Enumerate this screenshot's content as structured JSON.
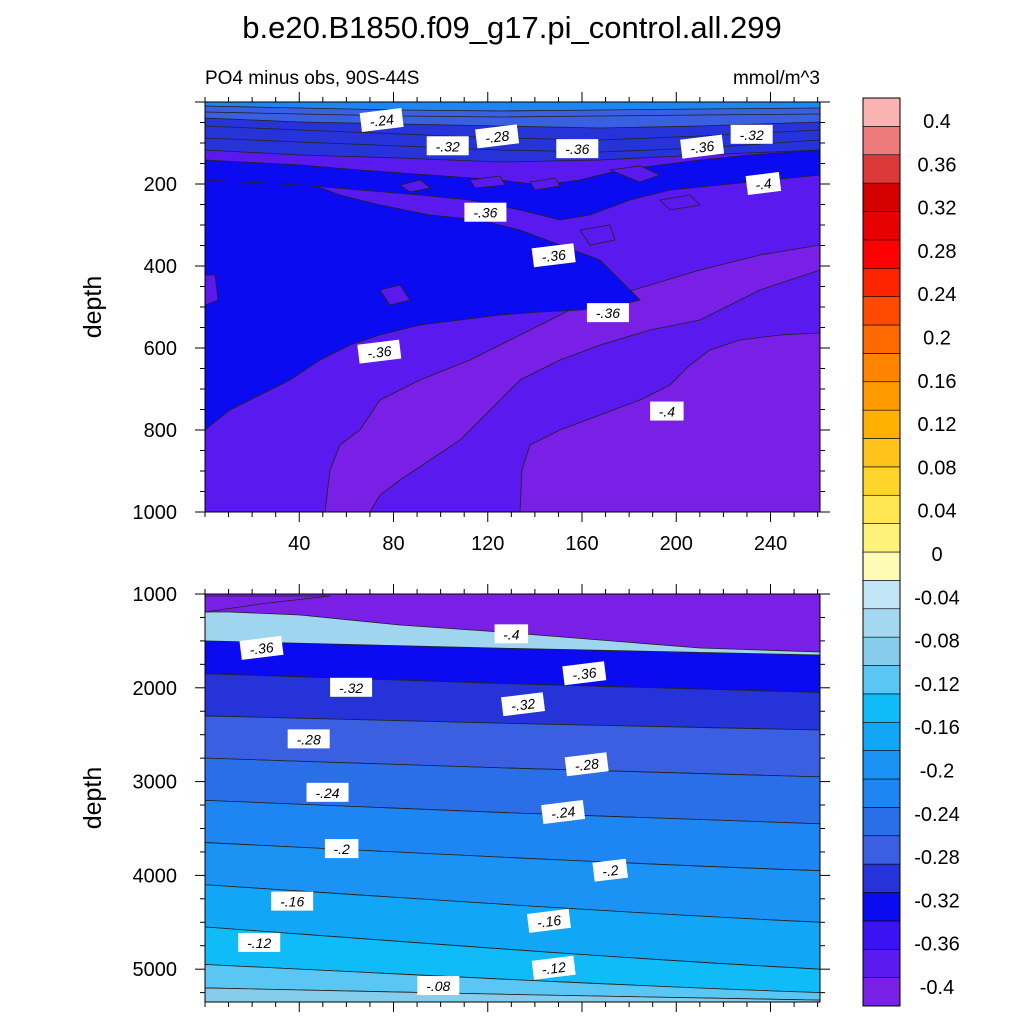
{
  "title": "b.e20.B1850.f09_g17.pi_control.all.299",
  "subtitle_left": "PO4 minus obs, 90S-44S",
  "subtitle_right": "mmol/m^3",
  "colorbar": {
    "levels": [
      "-0.4",
      "-0.36",
      "-0.32",
      "-0.28",
      "-0.24",
      "-0.2",
      "-0.16",
      "-0.12",
      "-0.08",
      "-0.04",
      "0",
      "0.04",
      "0.08",
      "0.12",
      "0.16",
      "0.2",
      "0.24",
      "0.28",
      "0.32",
      "0.36",
      "0.4"
    ],
    "colors": [
      "#7a1fe6",
      "#5a19ee",
      "#3a12f3",
      "#0b0bf2",
      "#2533d9",
      "#3a5fe0",
      "#2a6fe8",
      "#1e86f2",
      "#1a93f5",
      "#12a6f7",
      "#0fbcf8",
      "#5ac6f3",
      "#87cdeb",
      "#a4d8f0",
      "#c3e6f6",
      "#fdfbb6",
      "#fff27a",
      "#ffe653",
      "#ffd52b",
      "#ffc31a",
      "#ffb000",
      "#ff9a00",
      "#ff8500",
      "#ff6a00",
      "#ff4a00",
      "#ff2400",
      "#ff0000",
      "#e60000",
      "#d40000",
      "#dc3838",
      "#ee7b7b",
      "#fab3b3"
    ]
  },
  "chart_data": [
    {
      "type": "heatmap",
      "panel": "upper",
      "xlabel": "",
      "ylabel": "depth",
      "xticks": [
        "40",
        "80",
        "120",
        "160",
        "200",
        "240"
      ],
      "yticks": [
        "200",
        "400",
        "600",
        "800",
        "1000"
      ],
      "xlim": [
        0,
        261
      ],
      "ylim": [
        1000,
        0
      ],
      "contour_labels": [
        {
          "text": "-.24",
          "x": 75,
          "y": 45
        },
        {
          "text": "-.32",
          "x": 103,
          "y": 108
        },
        {
          "text": "-.28",
          "x": 124,
          "y": 85
        },
        {
          "text": "-.36",
          "x": 158,
          "y": 115
        },
        {
          "text": "-.36",
          "x": 211,
          "y": 110
        },
        {
          "text": "-.32",
          "x": 232,
          "y": 80
        },
        {
          "text": "-.4",
          "x": 237,
          "y": 200
        },
        {
          "text": "-.36",
          "x": 119,
          "y": 270
        },
        {
          "text": "-.36",
          "x": 148,
          "y": 375
        },
        {
          "text": "-.36",
          "x": 171,
          "y": 515
        },
        {
          "text": "-.36",
          "x": 74,
          "y": 610
        },
        {
          "text": "-.4",
          "x": 196,
          "y": 755
        }
      ]
    },
    {
      "type": "heatmap",
      "panel": "lower",
      "xlabel": "",
      "ylabel": "depth",
      "xticks": [],
      "yticks": [
        "1000",
        "2000",
        "3000",
        "4000",
        "5000"
      ],
      "xlim": [
        0,
        261
      ],
      "ylim": [
        5350,
        1000
      ],
      "contour_labels": [
        {
          "text": "-.36",
          "x": 24,
          "y": 1580
        },
        {
          "text": "-.4",
          "x": 130,
          "y": 1430
        },
        {
          "text": "-.36",
          "x": 161,
          "y": 1850
        },
        {
          "text": "-.32",
          "x": 62,
          "y": 2000
        },
        {
          "text": "-.32",
          "x": 135,
          "y": 2180
        },
        {
          "text": "-.28",
          "x": 44,
          "y": 2550
        },
        {
          "text": "-.28",
          "x": 162,
          "y": 2820
        },
        {
          "text": "-.24",
          "x": 52,
          "y": 3120
        },
        {
          "text": "-.24",
          "x": 152,
          "y": 3330
        },
        {
          "text": "-.2",
          "x": 58,
          "y": 3720
        },
        {
          "text": "-.2",
          "x": 172,
          "y": 3950
        },
        {
          "text": "-.16",
          "x": 37,
          "y": 4280
        },
        {
          "text": "-.16",
          "x": 146,
          "y": 4490
        },
        {
          "text": "-.12",
          "x": 23,
          "y": 4720
        },
        {
          "text": "-.12",
          "x": 148,
          "y": 4990
        },
        {
          "text": "-.08",
          "x": 99,
          "y": 5180
        }
      ]
    }
  ]
}
